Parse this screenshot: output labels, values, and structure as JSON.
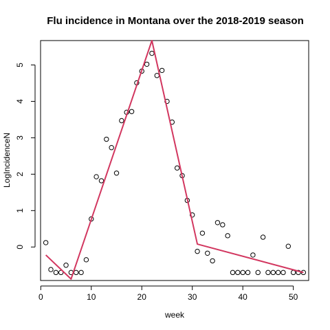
{
  "chart_data": {
    "type": "scatter",
    "title": "Flu incidence in Montana over the 2018-2019 season",
    "xlabel": "week",
    "ylabel": "LogIncidenceN",
    "xlim": [
      -0.04,
      53.04
    ],
    "ylim": [
      -0.92,
      5.67
    ],
    "xticks": [
      0,
      10,
      20,
      30,
      40,
      50
    ],
    "yticks": [
      0,
      1,
      2,
      3,
      4,
      5
    ],
    "grid": false,
    "legend": "none",
    "colors": {
      "points": "#000000",
      "fit_line": "#d2365f",
      "frame": "#000000"
    },
    "points": {
      "x": [
        1,
        2,
        3,
        4,
        5,
        6,
        7,
        8,
        9,
        10,
        11,
        12,
        13,
        14,
        15,
        16,
        17,
        18,
        19,
        20,
        21,
        22,
        23,
        24,
        25,
        26,
        27,
        28,
        29,
        30,
        31,
        32,
        33,
        34,
        35,
        36,
        37,
        38,
        39,
        40,
        41,
        42,
        43,
        44,
        45,
        46,
        47,
        48,
        49,
        50,
        51,
        52
      ],
      "y": [
        0.12,
        -0.62,
        -0.7,
        -0.7,
        -0.5,
        -0.7,
        -0.7,
        -0.7,
        -0.35,
        0.77,
        1.93,
        1.82,
        2.96,
        2.73,
        2.03,
        3.47,
        3.7,
        3.72,
        4.51,
        4.83,
        5.02,
        5.32,
        4.71,
        4.85,
        4.0,
        3.43,
        2.17,
        1.96,
        1.28,
        0.88,
        -0.12,
        0.38,
        -0.17,
        -0.38,
        0.67,
        0.61,
        0.31,
        -0.7,
        -0.7,
        -0.7,
        -0.7,
        -0.22,
        -0.7,
        0.27,
        -0.7,
        -0.7,
        -0.7,
        -0.7,
        0.02,
        -0.7,
        -0.7,
        -0.7
      ]
    },
    "fit_line": {
      "x": [
        1,
        6,
        22,
        31,
        52
      ],
      "y": [
        -0.22,
        -0.88,
        5.67,
        0.08,
        -0.7
      ]
    }
  }
}
